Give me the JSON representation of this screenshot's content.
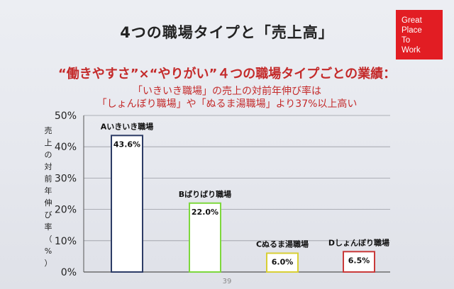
{
  "slide": {
    "title": "4つの職場タイプと「売上高」",
    "subtitle": "“働きやすさ”×“やりがい”４つの職場タイプごとの業績：",
    "desc_line1": "「いきいき職場」の売上の対前年伸び率は",
    "desc_line2": "「しょんぼり職場」や「ぬるま湯職場」より37%以上高い",
    "page_number": "39"
  },
  "logo": {
    "line1": "Great",
    "line2": "Place",
    "line3": "To",
    "line4": "Work",
    "color": "#e21d23"
  },
  "chart_data": {
    "type": "bar",
    "categories": [
      "Aいきいき職場",
      "Bばりばり職場",
      "Cぬるま湯職場",
      "Dしょんぼり職場"
    ],
    "values": [
      43.6,
      22.0,
      6.0,
      6.5
    ],
    "value_labels": [
      "43.6%",
      "22.0%",
      "6.0%",
      "6.5%"
    ],
    "bar_colors": [
      "#2d3c66",
      "#7dd83c",
      "#d8cf35",
      "#c93a3a"
    ],
    "ylabel": "売上の対前年伸び率（%）",
    "yticks": [
      "0%",
      "10%",
      "20%",
      "30%",
      "40%",
      "50%"
    ],
    "ylim": [
      0,
      50
    ],
    "grid": true
  }
}
